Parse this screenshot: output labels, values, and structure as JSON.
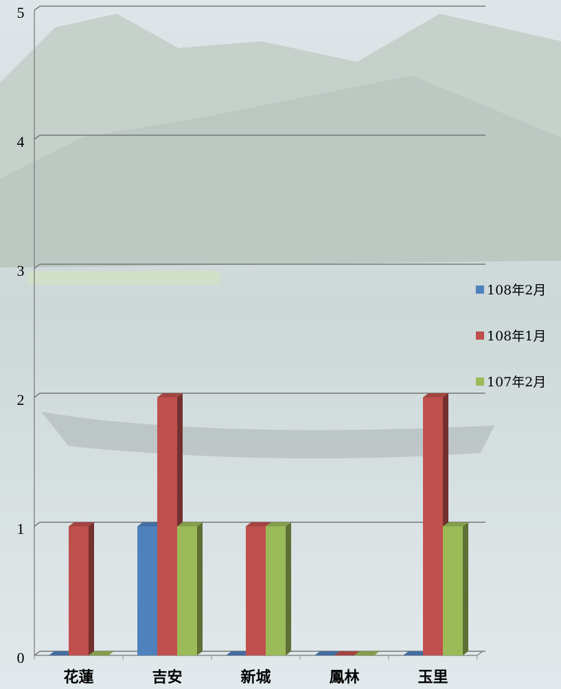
{
  "chart_data": {
    "type": "bar3d",
    "categories": [
      "花蓮",
      "吉安",
      "新城",
      "鳳林",
      "玉里"
    ],
    "series": [
      {
        "name": "108年2月",
        "color": "#4f81bd",
        "values": [
          0,
          1,
          0,
          0,
          0
        ]
      },
      {
        "name": "108年1月",
        "color": "#c0504d",
        "values": [
          1,
          2,
          1,
          0,
          2
        ]
      },
      {
        "name": "107年2月",
        "color": "#9bbb59",
        "values": [
          0,
          1,
          1,
          0,
          1
        ]
      }
    ],
    "ylim": [
      0,
      5
    ],
    "yticks": [
      0,
      1,
      2,
      3,
      4,
      5
    ],
    "grid": true,
    "legend": "right"
  }
}
